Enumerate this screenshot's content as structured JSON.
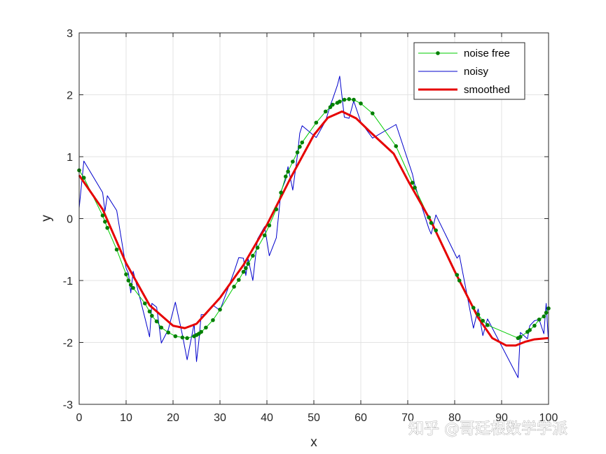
{
  "watermark": "知乎 @哥廷根数学学派",
  "chart_data": {
    "type": "line",
    "xlabel": "x",
    "ylabel": "y",
    "xlim": [
      0,
      100
    ],
    "ylim": [
      -3,
      3
    ],
    "xticks": [
      0,
      10,
      20,
      30,
      40,
      50,
      60,
      70,
      80,
      90,
      100
    ],
    "yticks": [
      -3,
      -2,
      -1,
      0,
      1,
      2,
      3
    ],
    "grid": true,
    "legend_position": "top-right",
    "series": [
      {
        "name": "noise free",
        "color": "#00cc00",
        "marker_color": "#007f00",
        "markers": true,
        "x": [
          0,
          1,
          5,
          5.5,
          6,
          8,
          10,
          10.5,
          11,
          11.5,
          14,
          15,
          15.5,
          16.5,
          17.5,
          19,
          20.5,
          22,
          23,
          24.5,
          25,
          25.5,
          26,
          27,
          28.5,
          30,
          33,
          34,
          35,
          35.5,
          36,
          37,
          38,
          39.5,
          40.5,
          42,
          43,
          44,
          44.5,
          45.5,
          46.5,
          47,
          47.5,
          50.5,
          52.5,
          53.5,
          54,
          55,
          55.5,
          56.5,
          57.5,
          58.5,
          60,
          62.5,
          67.5,
          71,
          71.5,
          74.5,
          75,
          76,
          80.5,
          81,
          84,
          85,
          86,
          87,
          93.5,
          94,
          95.5,
          96,
          97,
          98,
          99,
          99.5,
          100
        ],
        "y": [
          0.78,
          0.66,
          0.05,
          -0.05,
          -0.15,
          -0.5,
          -0.9,
          -1.0,
          -1.07,
          -1.12,
          -1.37,
          -1.5,
          -1.57,
          -1.66,
          -1.76,
          -1.84,
          -1.9,
          -1.92,
          -1.93,
          -1.9,
          -1.88,
          -1.86,
          -1.83,
          -1.76,
          -1.64,
          -1.47,
          -1.1,
          -0.99,
          -0.86,
          -0.8,
          -0.73,
          -0.6,
          -0.47,
          -0.27,
          -0.11,
          0.15,
          0.42,
          0.68,
          0.76,
          0.92,
          1.07,
          1.16,
          1.23,
          1.55,
          1.73,
          1.8,
          1.84,
          1.87,
          1.89,
          1.92,
          1.93,
          1.92,
          1.86,
          1.7,
          1.17,
          0.58,
          0.5,
          0.02,
          -0.07,
          -0.19,
          -0.91,
          -1.0,
          -1.44,
          -1.55,
          -1.65,
          -1.72,
          -1.93,
          -1.91,
          -1.83,
          -1.8,
          -1.73,
          -1.63,
          -1.58,
          -1.52,
          -1.45
        ]
      },
      {
        "name": "noisy",
        "color": "#0000cc",
        "markers": false,
        "x": [
          0,
          1,
          5,
          5.5,
          6,
          8,
          10,
          10.5,
          11,
          11.5,
          14,
          15,
          15.5,
          16.5,
          17.5,
          19,
          20.5,
          22,
          23,
          24.5,
          25,
          25.5,
          26,
          27,
          28.5,
          30,
          33,
          34,
          35,
          35.5,
          36,
          37,
          38,
          39.5,
          40.5,
          42,
          43,
          44,
          44.5,
          45.5,
          46.5,
          47,
          47.5,
          50.5,
          52.5,
          53.5,
          54,
          55,
          55.5,
          56.5,
          57.5,
          58.5,
          60,
          62.5,
          67.5,
          71,
          71.5,
          74.5,
          75,
          76,
          80.5,
          81,
          84,
          85,
          86,
          87,
          93.5,
          94,
          95.5,
          96,
          97,
          98,
          99,
          99.5,
          100
        ],
        "y": [
          0.17,
          0.93,
          0.42,
          0.12,
          0.37,
          0.13,
          -0.8,
          -0.88,
          -1.2,
          -0.85,
          -1.6,
          -1.91,
          -1.37,
          -1.43,
          -2.01,
          -1.79,
          -1.35,
          -1.88,
          -2.28,
          -1.7,
          -2.31,
          -1.97,
          -1.55,
          -1.55,
          -1.4,
          -1.48,
          -0.86,
          -0.63,
          -0.64,
          -0.92,
          -0.65,
          -1.0,
          -0.33,
          -0.13,
          -0.6,
          -0.31,
          0.44,
          0.63,
          0.84,
          0.46,
          1.03,
          1.38,
          1.5,
          1.31,
          1.58,
          1.83,
          1.93,
          2.15,
          2.3,
          1.64,
          1.62,
          1.9,
          1.56,
          1.3,
          1.52,
          0.72,
          0.55,
          -0.16,
          -0.25,
          0.06,
          -0.64,
          -0.59,
          -1.77,
          -1.46,
          -1.89,
          -1.62,
          -2.57,
          -1.84,
          -1.94,
          -1.73,
          -1.65,
          -1.63,
          -1.86,
          -1.37,
          -2.01
        ]
      },
      {
        "name": "smoothed",
        "color": "#e60000",
        "markers": false,
        "x": [
          0,
          5,
          10,
          15,
          20,
          22.5,
          25,
          30,
          35,
          40,
          45,
          50,
          53,
          56,
          59,
          62,
          67,
          70,
          75,
          80,
          85,
          88,
          91,
          93,
          95,
          97,
          100
        ],
        "y": [
          0.7,
          0.15,
          -0.72,
          -1.4,
          -1.73,
          -1.77,
          -1.7,
          -1.28,
          -0.75,
          -0.1,
          0.65,
          1.35,
          1.63,
          1.73,
          1.62,
          1.4,
          1.05,
          0.62,
          -0.05,
          -0.85,
          -1.6,
          -1.93,
          -2.05,
          -2.05,
          -1.99,
          -1.95,
          -1.93
        ]
      }
    ]
  }
}
